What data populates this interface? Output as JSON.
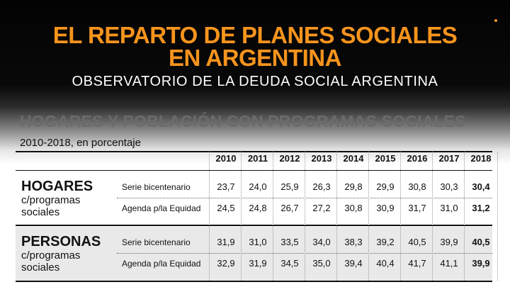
{
  "header": {
    "title_line1": "EL REPARTO DE PLANES SOCIALES",
    "title_line2": "EN ARGENTINA",
    "subtitle": "OBSERVATORIO DE LA DEUDA SOCIAL ARGENTINA"
  },
  "section": {
    "title": "HOGARES Y POBLACIÓN CON PROGRAMAS SOCIALES",
    "subtitle": "2010-2018, en porcentaje"
  },
  "colors": {
    "title": "#f7941d",
    "section_title": "#6b6b6b",
    "band": "#e9e9e9"
  },
  "table": {
    "years": [
      "2010",
      "2011",
      "2012",
      "2013",
      "2014",
      "2015",
      "2016",
      "2017",
      "2018"
    ],
    "groups": [
      {
        "name": "HOGARES",
        "line2": "c/programas",
        "line3": "sociales",
        "rows": [
          {
            "label": "Serie bicentenario",
            "values": [
              "23,7",
              "24,0",
              "25,9",
              "26,3",
              "29,8",
              "29,9",
              "30,8",
              "30,3",
              "30,4"
            ]
          },
          {
            "label": "Agenda p/la Equidad",
            "values": [
              "24,5",
              "24,8",
              "26,7",
              "27,2",
              "30,8",
              "30,9",
              "31,7",
              "31,0",
              "31,2"
            ]
          }
        ]
      },
      {
        "name": "PERSONAS",
        "line2": "c/programas",
        "line3": "sociales",
        "rows": [
          {
            "label": "Serie bicentenario",
            "values": [
              "31,9",
              "31,0",
              "33,5",
              "34,0",
              "38,3",
              "39,2",
              "40,5",
              "39,9",
              "40,5"
            ]
          },
          {
            "label": "Agenda p/la Equidad",
            "values": [
              "32,9",
              "31,9",
              "34,5",
              "35,0",
              "39,4",
              "40,4",
              "41,7",
              "41,1",
              "39,9"
            ]
          }
        ]
      }
    ]
  }
}
